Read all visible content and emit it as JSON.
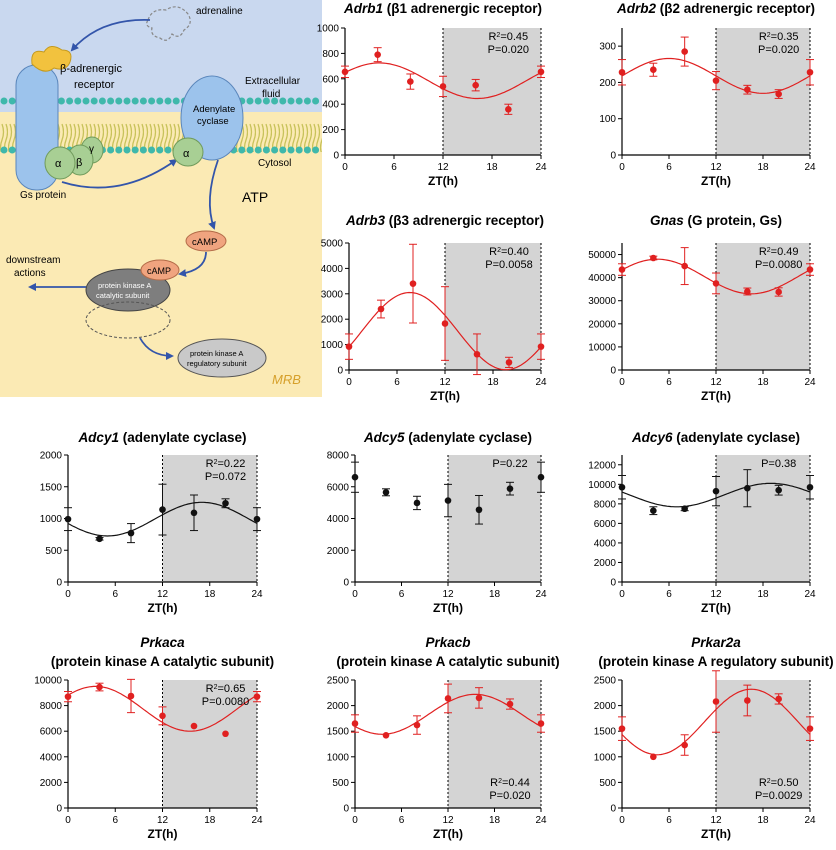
{
  "diagram": {
    "labels": {
      "adrenaline": "adrenaline",
      "receptor_line1": "β-adrenergic",
      "receptor_line2": "receptor",
      "extracellular_line1": "Extracellular",
      "extracellular_line2": "fluid",
      "adenylate_line1": "Adenylate",
      "adenylate_line2": "cyclase",
      "cytosol": "Cytosol",
      "gs_protein": "Gs protein",
      "alpha": "α",
      "beta": "β",
      "gamma": "γ",
      "atp": "ATP",
      "camp": "cAMP",
      "downstream_line1": "downstream",
      "downstream_line2": "actions",
      "pka_cat_line1": "protein kinase A",
      "pka_cat_line2": "catalytic subunit",
      "pka_reg_line1": "protein kinase A",
      "pka_reg_line2": "regulatory subunit",
      "signature": "MRB"
    },
    "colors": {
      "extracellular_bg": "#c9d8ef",
      "cytosol_bg": "#fbeab4",
      "membrane_head": "#3fb8ab",
      "membrane_tail": "#c8c25a",
      "receptor": "#9cc3ec",
      "ligand": "#f2c23e",
      "gprotein": "#a8cf94",
      "camp_fill": "#f0a47f",
      "pka_cat": "#7e7e7e",
      "pka_reg": "#c9c9c9",
      "arrow": "#3355aa"
    }
  },
  "chart_data": [
    {
      "type": "scatter",
      "title_gene": "Adrb1",
      "title_rest": " (β1 adrenergic receptor)",
      "xlabel": "ZT(h)",
      "x": [
        0,
        4,
        8,
        12,
        16,
        20,
        24
      ],
      "y": [
        655,
        790,
        578,
        540,
        550,
        360,
        655
      ],
      "err": [
        45,
        55,
        60,
        80,
        45,
        40,
        45
      ],
      "ylim": [
        0,
        1000
      ],
      "yticks": [
        "0",
        "200",
        "400",
        "600",
        "800",
        "1000"
      ],
      "xticks": [
        "0",
        "6",
        "12",
        "18",
        "24"
      ],
      "fit": {
        "mesor": 585,
        "amplitude": 140,
        "acrophase": 4.2
      },
      "color": "#e02020",
      "stats": [
        "R2=0.45",
        "P=0.020"
      ],
      "stats_pos": "top"
    },
    {
      "type": "scatter",
      "title_gene": "Adrb2",
      "title_rest": " (β2 adrenergic receptor)",
      "xlabel": "ZT(h)",
      "x": [
        0,
        4,
        8,
        12,
        16,
        20,
        24
      ],
      "y": [
        228,
        235,
        285,
        205,
        180,
        168,
        228
      ],
      "err": [
        35,
        18,
        40,
        25,
        12,
        12,
        35
      ],
      "ylim": [
        0,
        350
      ],
      "yticks": [
        "0",
        "100",
        "200",
        "300"
      ],
      "xticks": [
        "0",
        "6",
        "12",
        "18",
        "24"
      ],
      "fit": {
        "mesor": 218,
        "amplitude": 48,
        "acrophase": 6.0
      },
      "color": "#e02020",
      "stats": [
        "R2=0.35",
        "P=0.020"
      ],
      "stats_pos": "top"
    },
    {
      "type": "scatter",
      "title_gene": "Adrb3",
      "title_rest": " (β3 adrenergic receptor)",
      "xlabel": "ZT(h)",
      "x": [
        0,
        4,
        8,
        12,
        16,
        20,
        24
      ],
      "y": [
        920,
        2400,
        3400,
        1830,
        620,
        300,
        920
      ],
      "err": [
        500,
        350,
        1550,
        1450,
        800,
        200,
        500
      ],
      "ylim": [
        0,
        5000
      ],
      "yticks": [
        "0",
        "1000",
        "2000",
        "3000",
        "4000",
        "5000"
      ],
      "xticks": [
        "0",
        "6",
        "12",
        "18",
        "24"
      ],
      "fit": {
        "mesor": 1530,
        "amplitude": 1520,
        "acrophase": 7.6
      },
      "color": "#e02020",
      "stats": [
        "R2=0.40",
        "P=0.0058"
      ],
      "stats_pos": "top"
    },
    {
      "type": "scatter",
      "title_gene": "Gnas",
      "title_rest": " (G protein, Gs)",
      "xlabel": "ZT(h)",
      "x": [
        0,
        4,
        8,
        12,
        16,
        20,
        24
      ],
      "y": [
        43500,
        48500,
        45000,
        37500,
        34000,
        33800,
        43500
      ],
      "err": [
        2500,
        800,
        8000,
        4500,
        1500,
        1800,
        2500
      ],
      "ylim": [
        0,
        55000
      ],
      "yticks": [
        "0",
        "10000",
        "20000",
        "30000",
        "40000",
        "50000"
      ],
      "xticks": [
        "0",
        "6",
        "12",
        "18",
        "24"
      ],
      "fit": {
        "mesor": 40500,
        "amplitude": 7500,
        "acrophase": 4.5
      },
      "color": "#e02020",
      "stats": [
        "R2=0.49",
        "P=0.0080"
      ],
      "stats_pos": "top"
    },
    {
      "type": "scatter",
      "title_gene": "Adcy1",
      "title_rest": " (adenylate cyclase)",
      "xlabel": "ZT(h)",
      "x": [
        0,
        4,
        8,
        12,
        16,
        20,
        24
      ],
      "y": [
        990,
        680,
        770,
        1140,
        1090,
        1240,
        990
      ],
      "err": [
        180,
        20,
        150,
        400,
        280,
        70,
        180
      ],
      "ylim": [
        0,
        2000
      ],
      "yticks": [
        "0",
        "500",
        "1000",
        "1500",
        "2000"
      ],
      "xticks": [
        "0",
        "6",
        "12",
        "18",
        "24"
      ],
      "fit": {
        "mesor": 990,
        "amplitude": 265,
        "acrophase": 17.0
      },
      "color": "#111111",
      "stats": [
        "R2=0.22",
        "P=0.072"
      ],
      "stats_pos": "top"
    },
    {
      "type": "scatter",
      "title_gene": "Adcy5",
      "title_rest": " (adenylate cyclase)",
      "xlabel": "ZT(h)",
      "x": [
        0,
        4,
        8,
        12,
        16,
        20,
        24
      ],
      "y": [
        6600,
        5650,
        4980,
        5130,
        4550,
        5880,
        6600
      ],
      "err": [
        950,
        220,
        420,
        1020,
        900,
        400,
        950
      ],
      "ylim": [
        0,
        8000
      ],
      "yticks": [
        "0",
        "2000",
        "4000",
        "6000",
        "8000"
      ],
      "xticks": [
        "0",
        "6",
        "12",
        "18",
        "24"
      ],
      "fit": null,
      "color": "#111111",
      "stats": [
        "P=0.22"
      ],
      "stats_pos": "top"
    },
    {
      "type": "scatter",
      "title_gene": "Adcy6",
      "title_rest": " (adenylate cyclase)",
      "xlabel": "ZT(h)",
      "x": [
        0,
        4,
        8,
        12,
        16,
        20,
        24
      ],
      "y": [
        9700,
        7300,
        7500,
        9300,
        9600,
        9400,
        9700
      ],
      "err": [
        1200,
        400,
        200,
        1500,
        1900,
        500,
        1200
      ],
      "ylim": [
        0,
        13000
      ],
      "yticks": [
        "0",
        "2000",
        "4000",
        "6000",
        "8000",
        "10000",
        "12000"
      ],
      "xticks": [
        "0",
        "6",
        "12",
        "18",
        "24"
      ],
      "fit": {
        "mesor": 8900,
        "amplitude": 1200,
        "acrophase": 19.0
      },
      "color": "#111111",
      "stats": [
        "P=0.38"
      ],
      "stats_pos": "top"
    },
    {
      "type": "scatter",
      "title_gene": "Prkaca",
      "title_rest": "",
      "title_line2": "(protein kinase A catalytic subunit)",
      "xlabel": "ZT(h)",
      "x": [
        0,
        4,
        8,
        12,
        16,
        20,
        24
      ],
      "y": [
        8700,
        9450,
        8750,
        7200,
        6400,
        5800,
        8700
      ],
      "err": [
        400,
        300,
        1300,
        700,
        0,
        0,
        400
      ],
      "ylim": [
        0,
        10000
      ],
      "yticks": [
        "0",
        "2000",
        "4000",
        "6000",
        "8000",
        "10000"
      ],
      "xticks": [
        "0",
        "6",
        "12",
        "18",
        "24"
      ],
      "fit": {
        "mesor": 7750,
        "amplitude": 1750,
        "acrophase": 3.5
      },
      "color": "#e02020",
      "stats": [
        "R2=0.65",
        "P=0.0080"
      ],
      "stats_pos": "top"
    },
    {
      "type": "scatter",
      "title_gene": "Prkacb",
      "title_rest": "",
      "title_line2": "(protein kinase A catalytic subunit)",
      "xlabel": "ZT(h)",
      "x": [
        0,
        4,
        8,
        12,
        16,
        20,
        24
      ],
      "y": [
        1650,
        1420,
        1620,
        2140,
        2150,
        2030,
        1650
      ],
      "err": [
        170,
        0,
        180,
        280,
        200,
        100,
        170
      ],
      "ylim": [
        0,
        2500
      ],
      "yticks": [
        "0",
        "500",
        "1000",
        "1500",
        "2000",
        "2500"
      ],
      "xticks": [
        "0",
        "6",
        "12",
        "18",
        "24"
      ],
      "fit": {
        "mesor": 1830,
        "amplitude": 390,
        "acrophase": 15.5
      },
      "color": "#e02020",
      "stats": [
        "R2=0.44",
        "P=0.020"
      ],
      "stats_pos": "bottom"
    },
    {
      "type": "scatter",
      "title_gene": "Prkar2a",
      "title_rest": "",
      "title_line2": "(protein kinase A regulatory subunit)",
      "xlabel": "ZT(h)",
      "x": [
        0,
        4,
        8,
        12,
        16,
        20,
        24
      ],
      "y": [
        1550,
        1000,
        1230,
        2080,
        2100,
        2130,
        1550
      ],
      "err": [
        230,
        0,
        200,
        600,
        300,
        100,
        230
      ],
      "ylim": [
        0,
        2500
      ],
      "yticks": [
        "0",
        "500",
        "1000",
        "1500",
        "2000",
        "2500"
      ],
      "xticks": [
        "0",
        "6",
        "12",
        "18",
        "24"
      ],
      "fit": {
        "mesor": 1680,
        "amplitude": 640,
        "acrophase": 16.5
      },
      "color": "#e02020",
      "stats": [
        "R2=0.50",
        "P=0.0029"
      ],
      "stats_pos": "bottom"
    }
  ]
}
